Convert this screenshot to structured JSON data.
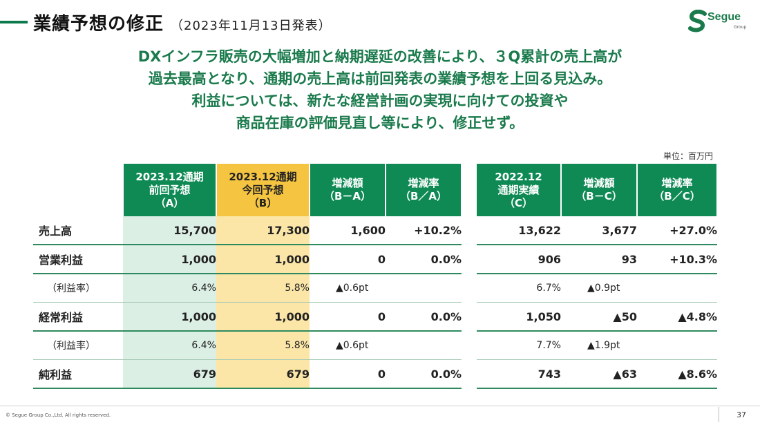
{
  "header": {
    "title": "業績予想の修正",
    "subtitle": "（2023年11月13日発表）"
  },
  "logo": {
    "name": "Segue",
    "sub": "Group",
    "color": "#1b7a4b"
  },
  "headline": [
    "DXインフラ販売の大幅増加と納期遅延の改善により、３Q累計の売上高が",
    "過去最高となり、通期の売上高は前回発表の業績予想を上回る見込み。",
    "利益については、新たな経営計画の実現に向けての投資や",
    "商品在庫の評価見直し等により、修正せず。"
  ],
  "unit": "単位：百万円",
  "table_left": {
    "headers": [
      "2023.12通期\n前回予想\n（A）",
      "2023.12通期\n今回予想\n（B）",
      "増減額\n（B－A）",
      "増減率\n（B／A）"
    ],
    "rows": [
      {
        "label": "売上高",
        "a": "15,700",
        "b": "17,300",
        "diff": "1,600",
        "rate": "+10.2%"
      },
      {
        "label": "営業利益",
        "a": "1,000",
        "b": "1,000",
        "diff": "0",
        "rate": "0.0%"
      },
      {
        "label": "（利益率）",
        "a": "6.4%",
        "b": "5.8%",
        "diff": "▲0.6pt",
        "rate": ""
      },
      {
        "label": "経常利益",
        "a": "1,000",
        "b": "1,000",
        "diff": "0",
        "rate": "0.0%"
      },
      {
        "label": "（利益率）",
        "a": "6.4%",
        "b": "5.8%",
        "diff": "▲0.6pt",
        "rate": ""
      },
      {
        "label": "純利益",
        "a": "679",
        "b": "679",
        "diff": "0",
        "rate": "0.0%"
      }
    ]
  },
  "table_right": {
    "headers": [
      "2022.12\n通期実績\n（C）",
      "増減額\n（B－C）",
      "増減率\n（B／C）"
    ],
    "rows": [
      {
        "c": "13,622",
        "diff": "3,677",
        "rate": "+27.0%"
      },
      {
        "c": "906",
        "diff": "93",
        "rate": "+10.3%"
      },
      {
        "c": "6.7%",
        "diff": "▲0.9pt",
        "rate": ""
      },
      {
        "c": "1,050",
        "diff": "▲50",
        "rate": "▲4.8%"
      },
      {
        "c": "7.7%",
        "diff": "▲1.9pt",
        "rate": ""
      },
      {
        "c": "743",
        "diff": "▲63",
        "rate": "▲8.6%"
      }
    ]
  },
  "footer": {
    "copyright": "© Segue Group Co.,Ltd. All rights reserved.",
    "page": "37"
  }
}
